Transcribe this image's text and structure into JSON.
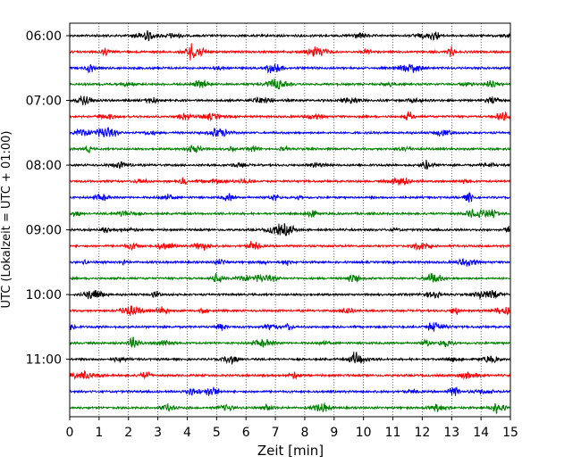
{
  "chart_data": {
    "type": "line",
    "title": "",
    "xlabel": "Zeit  [min]",
    "ylabel": "UTC (Lokalzeit = UTC + 01:00)",
    "xlim": [
      0,
      15
    ],
    "x_ticks": [
      0,
      1,
      2,
      3,
      4,
      5,
      6,
      7,
      8,
      9,
      10,
      11,
      12,
      13,
      14,
      15
    ],
    "x_tick_labels": [
      "0",
      "1",
      "2",
      "3",
      "4",
      "5",
      "6",
      "7",
      "8",
      "9",
      "10",
      "11",
      "12",
      "13",
      "14",
      "15"
    ],
    "y_tick_labels": [
      "06:00",
      "07:00",
      "08:00",
      "09:00",
      "10:00",
      "11:00"
    ],
    "trace_offsets": [
      "06:00",
      "06:15",
      "06:30",
      "06:45",
      "07:00",
      "07:15",
      "07:30",
      "07:45",
      "08:00",
      "08:15",
      "08:30",
      "08:45",
      "09:00",
      "09:15",
      "09:30",
      "09:45",
      "10:00",
      "10:15",
      "10:30",
      "10:45",
      "11:00",
      "11:15",
      "11:30",
      "11:45"
    ],
    "trace_colors": [
      "#000000",
      "#ff0000",
      "#0000ff",
      "#008000"
    ],
    "grid": "vertical dotted",
    "legend": "none"
  }
}
